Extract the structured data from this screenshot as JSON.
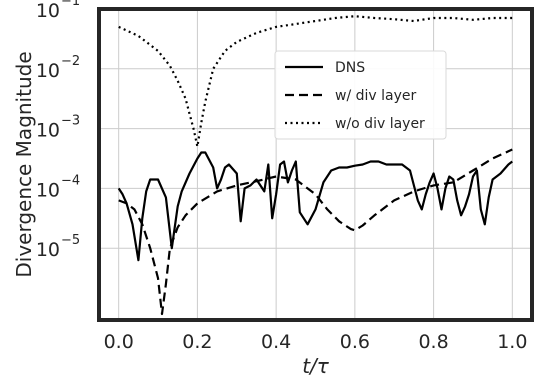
{
  "chart_data": {
    "type": "line",
    "xlabel": "t/τ",
    "ylabel": "Divergence Magnitude",
    "xlim": [
      -0.05,
      1.05
    ],
    "ylim_log10": [
      -6.2,
      -1
    ],
    "yscale": "log",
    "grid": true,
    "legend_placement": "upper center-right",
    "x_ticks": [
      0.0,
      0.2,
      0.4,
      0.6,
      0.8,
      1.0
    ],
    "x_tick_labels": [
      "0.0",
      "0.2",
      "0.4",
      "0.6",
      "0.8",
      "1.0"
    ],
    "y_ticks_log10": [
      -5,
      -4,
      -3,
      -2,
      -1
    ],
    "y_tick_labels": [
      {
        "base": "10",
        "exp": "−5"
      },
      {
        "base": "10",
        "exp": "−4"
      },
      {
        "base": "10",
        "exp": "−3"
      },
      {
        "base": "10",
        "exp": "−2"
      },
      {
        "base": "10",
        "exp": "−1"
      }
    ],
    "series": [
      {
        "name": "DNS",
        "style": "solid",
        "x": [
          0.0,
          0.01,
          0.02,
          0.035,
          0.05,
          0.06,
          0.07,
          0.08,
          0.1,
          0.12,
          0.135,
          0.15,
          0.16,
          0.18,
          0.2,
          0.21,
          0.22,
          0.24,
          0.25,
          0.26,
          0.27,
          0.28,
          0.3,
          0.31,
          0.32,
          0.335,
          0.35,
          0.37,
          0.38,
          0.39,
          0.4,
          0.41,
          0.42,
          0.43,
          0.44,
          0.45,
          0.46,
          0.48,
          0.5,
          0.52,
          0.54,
          0.56,
          0.58,
          0.6,
          0.62,
          0.64,
          0.66,
          0.68,
          0.7,
          0.72,
          0.74,
          0.76,
          0.77,
          0.78,
          0.79,
          0.8,
          0.81,
          0.82,
          0.83,
          0.84,
          0.85,
          0.86,
          0.87,
          0.88,
          0.89,
          0.9,
          0.91,
          0.92,
          0.93,
          0.94,
          0.95,
          0.97,
          0.99,
          1.0
        ],
        "y_log10": [
          -4,
          -4.1,
          -4.25,
          -4.6,
          -5.2,
          -4.5,
          -4.05,
          -3.85,
          -3.85,
          -4.15,
          -5.0,
          -4.3,
          -4.05,
          -3.75,
          -3.5,
          -3.4,
          -3.4,
          -3.65,
          -4.0,
          -3.85,
          -3.65,
          -3.6,
          -3.75,
          -4.55,
          -4.0,
          -3.95,
          -3.85,
          -4.05,
          -3.6,
          -4.5,
          -4.1,
          -3.6,
          -3.55,
          -3.9,
          -3.7,
          -3.55,
          -4.4,
          -4.6,
          -4.35,
          -3.9,
          -3.7,
          -3.65,
          -3.65,
          -3.62,
          -3.6,
          -3.55,
          -3.55,
          -3.6,
          -3.6,
          -3.6,
          -3.7,
          -4.2,
          -4.35,
          -4.1,
          -3.9,
          -3.75,
          -4.0,
          -4.35,
          -4.0,
          -3.8,
          -3.85,
          -4.2,
          -4.45,
          -4.3,
          -4.1,
          -3.8,
          -3.7,
          -4.35,
          -4.6,
          -4.15,
          -3.85,
          -3.75,
          -3.6,
          -3.55
        ]
      },
      {
        "name": "w/ div layer",
        "style": "dashed",
        "x": [
          0.0,
          0.02,
          0.04,
          0.06,
          0.08,
          0.1,
          0.11,
          0.12,
          0.13,
          0.15,
          0.17,
          0.2,
          0.25,
          0.3,
          0.35,
          0.4,
          0.45,
          0.5,
          0.53,
          0.56,
          0.59,
          0.6,
          0.62,
          0.65,
          0.7,
          0.75,
          0.8,
          0.85,
          0.9,
          0.95,
          1.0
        ],
        "y_log10": [
          -4.2,
          -4.25,
          -4.35,
          -4.6,
          -5.0,
          -5.5,
          -6.1,
          -5.6,
          -5.0,
          -4.65,
          -4.45,
          -4.25,
          -4.05,
          -3.95,
          -3.88,
          -3.8,
          -3.85,
          -4.1,
          -4.35,
          -4.55,
          -4.68,
          -4.7,
          -4.62,
          -4.45,
          -4.2,
          -4.05,
          -3.95,
          -3.9,
          -3.7,
          -3.5,
          -3.35
        ]
      },
      {
        "name": "w/o div layer",
        "style": "dotted",
        "x": [
          0.0,
          0.05,
          0.1,
          0.13,
          0.15,
          0.17,
          0.18,
          0.19,
          0.2,
          0.21,
          0.22,
          0.24,
          0.27,
          0.3,
          0.35,
          0.4,
          0.45,
          0.5,
          0.55,
          0.6,
          0.65,
          0.7,
          0.75,
          0.8,
          0.85,
          0.9,
          0.95,
          1.0
        ],
        "y_log10": [
          -1.3,
          -1.45,
          -1.7,
          -1.95,
          -2.2,
          -2.5,
          -2.75,
          -3.0,
          -3.3,
          -2.9,
          -2.55,
          -2.0,
          -1.7,
          -1.55,
          -1.4,
          -1.3,
          -1.25,
          -1.2,
          -1.15,
          -1.12,
          -1.15,
          -1.17,
          -1.2,
          -1.15,
          -1.15,
          -1.18,
          -1.15,
          -1.15
        ]
      }
    ]
  }
}
